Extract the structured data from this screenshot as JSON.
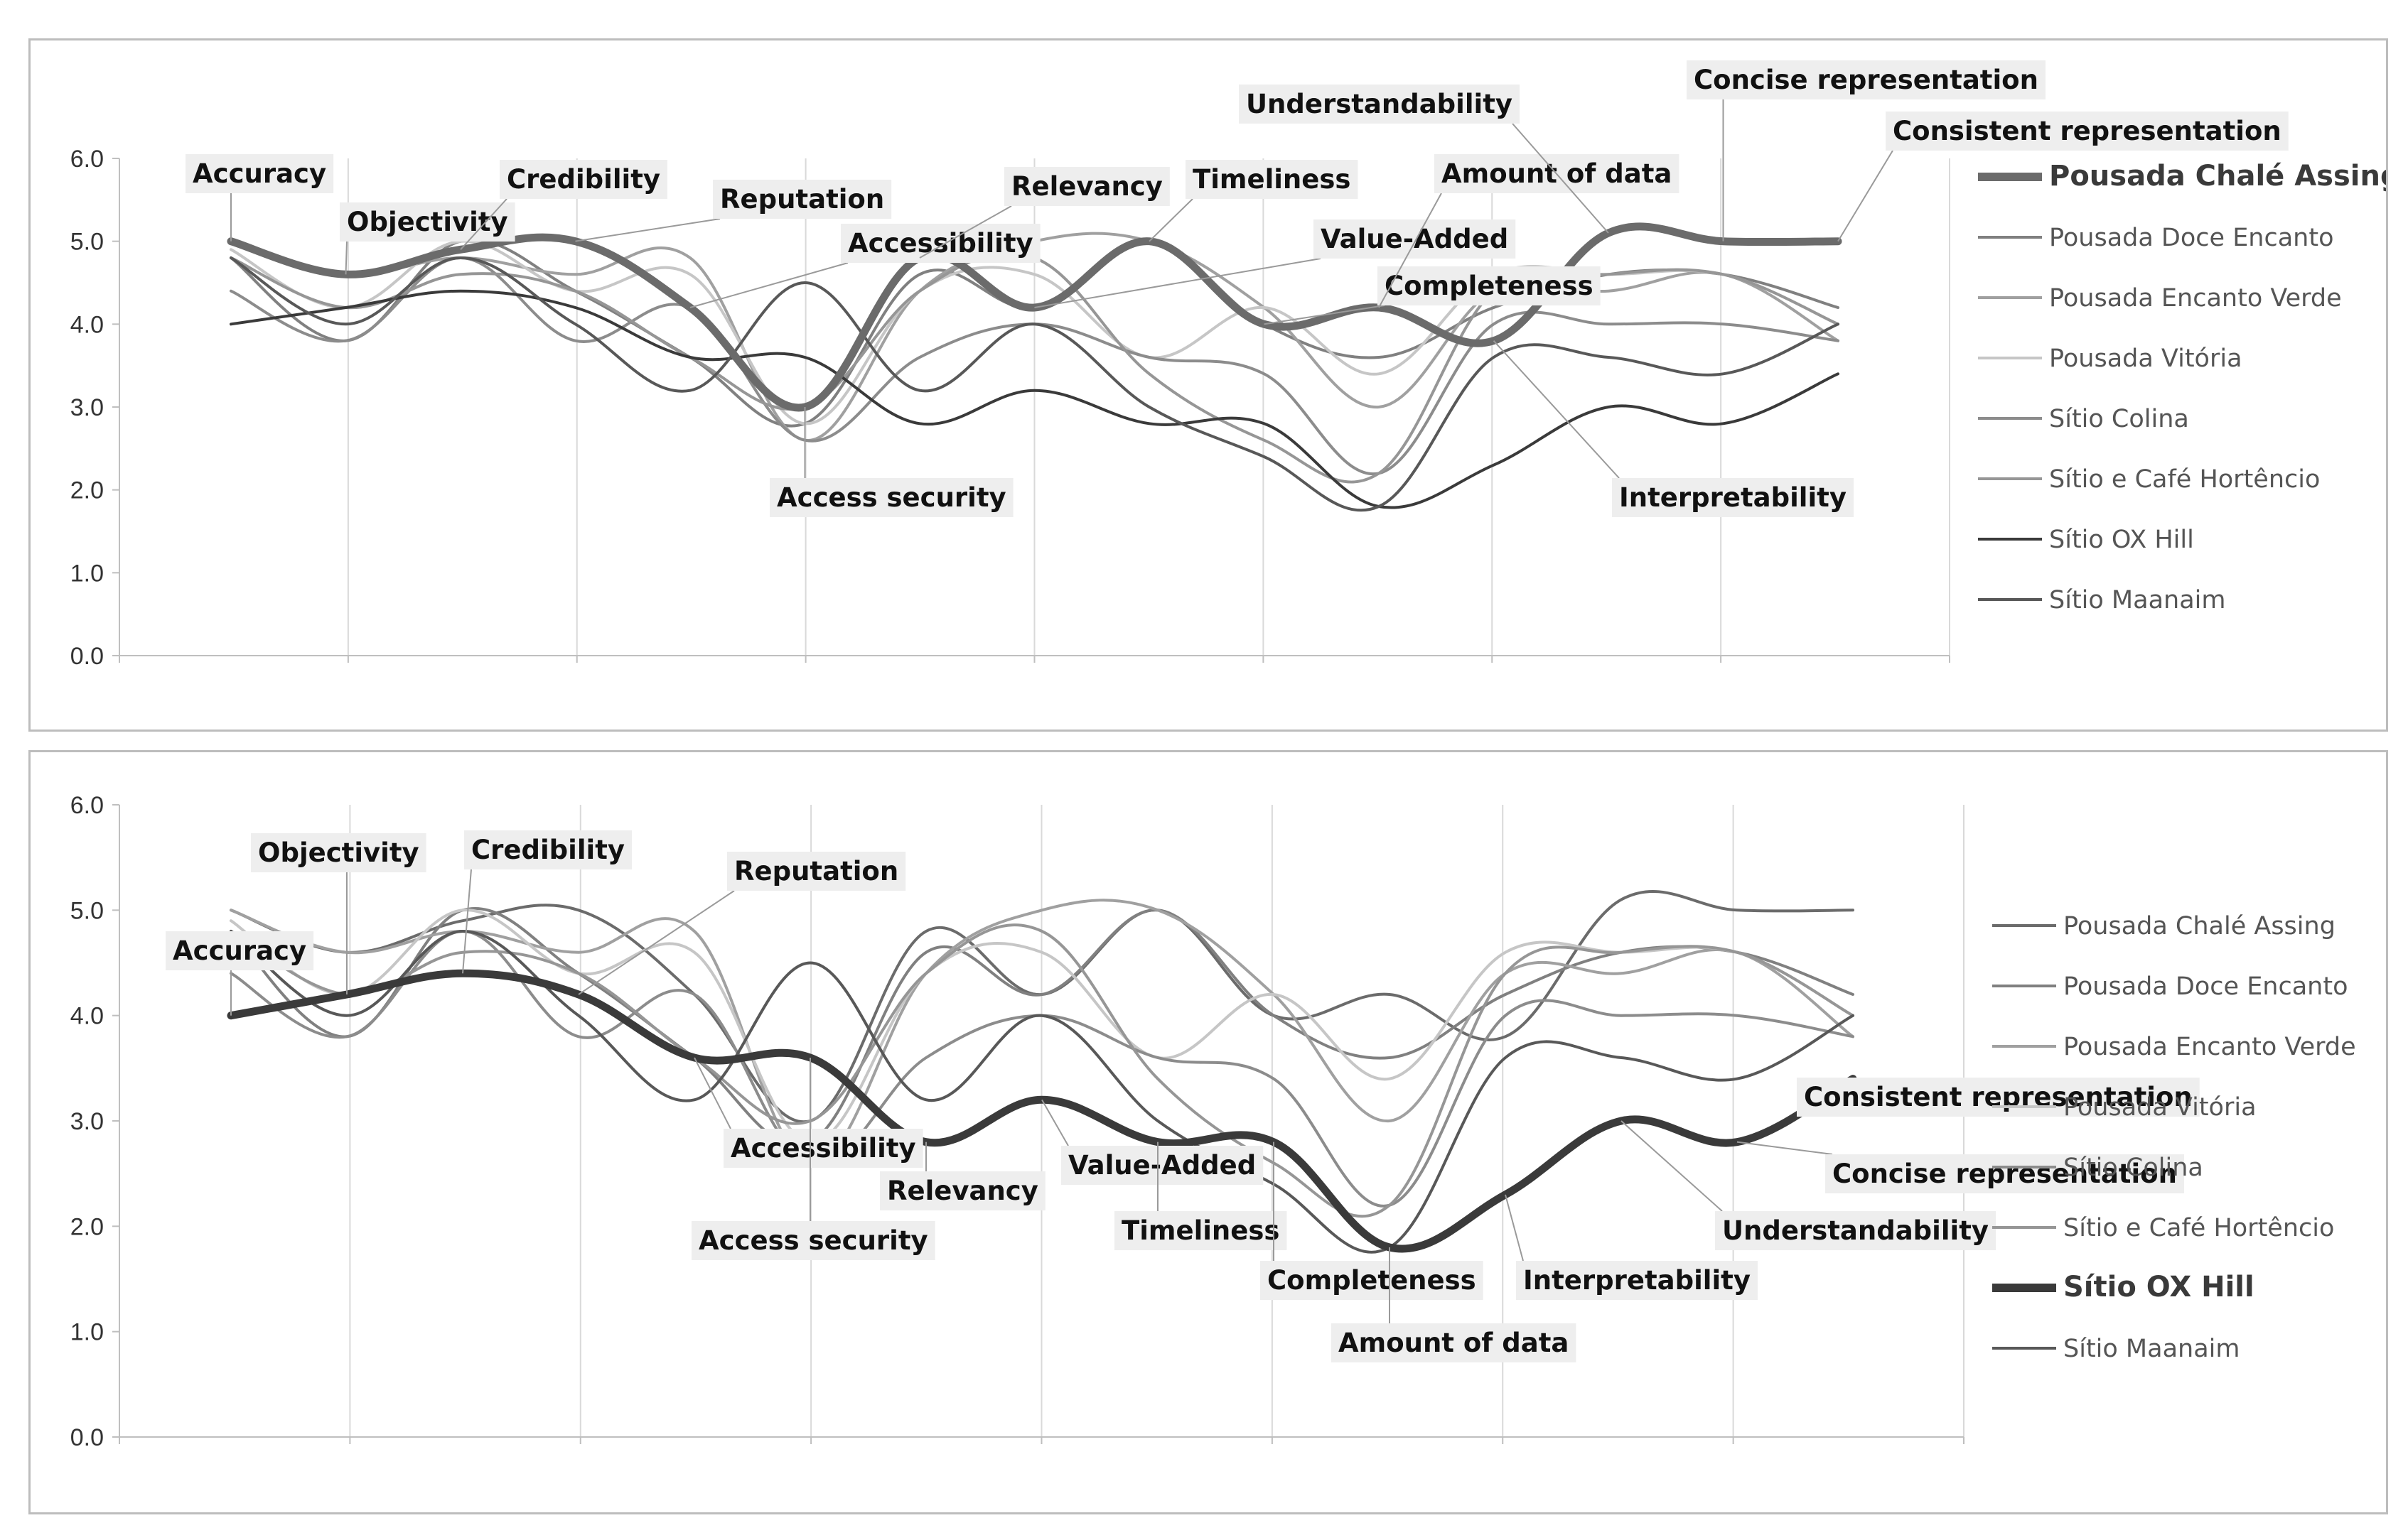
{
  "chart_data": [
    {
      "type": "line",
      "x": [
        "Accuracy",
        "Objectivity",
        "Credibility",
        "Reputation",
        "Accessibility",
        "Access security",
        "Relevancy",
        "Value-Added",
        "Timeliness",
        "Completeness",
        "Amount of data",
        "Interpretability",
        "Understandability",
        "Concise representation",
        "Consistent representation"
      ],
      "ylim": [
        0,
        6
      ],
      "yticks": [
        "0.0",
        "1.0",
        "2.0",
        "3.0",
        "4.0",
        "5.0",
        "6.0"
      ],
      "highlight": "Pousada Chalé Assing",
      "legend_position": "right",
      "series": [
        {
          "name": "Pousada Chalé Assing",
          "color": "#6b6b6b",
          "values": [
            5.0,
            4.6,
            4.9,
            5.0,
            4.2,
            3.0,
            4.8,
            4.2,
            5.0,
            4.0,
            4.2,
            3.8,
            5.1,
            5.0,
            5.0
          ]
        },
        {
          "name": "Pousada Doce Encanto",
          "color": "#808080",
          "values": [
            4.8,
            3.8,
            5.0,
            4.4,
            3.6,
            2.8,
            4.6,
            4.2,
            5.0,
            4.0,
            3.6,
            4.2,
            4.6,
            4.6,
            4.2
          ]
        },
        {
          "name": "Pousada Encanto Verde",
          "color": "#a0a0a0",
          "values": [
            5.0,
            4.6,
            4.8,
            4.6,
            4.8,
            2.6,
            4.4,
            5.0,
            5.0,
            4.2,
            3.0,
            4.4,
            4.4,
            4.6,
            3.8
          ]
        },
        {
          "name": "Pousada Vitória",
          "color": "#c6c6c6",
          "values": [
            4.9,
            4.2,
            5.0,
            4.4,
            4.6,
            2.8,
            4.4,
            4.6,
            3.6,
            4.2,
            3.4,
            4.6,
            4.6,
            4.6,
            4.0
          ]
        },
        {
          "name": "Sítio Colina",
          "color": "#8c8c8c",
          "values": [
            4.4,
            3.8,
            4.8,
            3.8,
            4.2,
            2.6,
            3.6,
            4.0,
            3.6,
            3.4,
            2.2,
            4.0,
            4.0,
            4.0,
            3.8
          ]
        },
        {
          "name": "Sítio e Café Hortêncio",
          "color": "#969696",
          "values": [
            4.8,
            4.2,
            4.6,
            4.4,
            3.6,
            3.0,
            4.4,
            4.8,
            3.4,
            2.6,
            2.2,
            4.4,
            4.6,
            4.6,
            4.0
          ]
        },
        {
          "name": "Sítio OX Hill",
          "color": "#3a3a3a",
          "values": [
            4.0,
            4.2,
            4.4,
            4.2,
            3.6,
            3.6,
            2.8,
            3.2,
            2.8,
            2.8,
            1.8,
            2.3,
            3.0,
            2.8,
            3.4
          ]
        },
        {
          "name": "Sítio Maanaim",
          "color": "#585858",
          "values": [
            4.8,
            4.0,
            4.8,
            4.0,
            3.2,
            4.5,
            3.2,
            4.0,
            3.0,
            2.4,
            1.8,
            3.6,
            3.6,
            3.4,
            4.0
          ]
        }
      ]
    },
    {
      "type": "line",
      "x": [
        "Accuracy",
        "Objectivity",
        "Credibility",
        "Reputation",
        "Accessibility",
        "Access security",
        "Relevancy",
        "Value-Added",
        "Timeliness",
        "Completeness",
        "Amount of data",
        "Interpretability",
        "Understandability",
        "Concise representation",
        "Consistent representation"
      ],
      "ylim": [
        0,
        6
      ],
      "yticks": [
        "0.0",
        "1.0",
        "2.0",
        "3.0",
        "4.0",
        "5.0",
        "6.0"
      ],
      "highlight": "Sítio OX Hill",
      "legend_position": "right",
      "series": [
        {
          "name": "Pousada Chalé Assing",
          "color": "#6b6b6b",
          "values": [
            5.0,
            4.6,
            4.9,
            5.0,
            4.2,
            3.0,
            4.8,
            4.2,
            5.0,
            4.0,
            4.2,
            3.8,
            5.1,
            5.0,
            5.0
          ]
        },
        {
          "name": "Pousada Doce Encanto",
          "color": "#808080",
          "values": [
            4.8,
            3.8,
            5.0,
            4.4,
            3.6,
            2.8,
            4.6,
            4.2,
            5.0,
            4.0,
            3.6,
            4.2,
            4.6,
            4.6,
            4.2
          ]
        },
        {
          "name": "Pousada Encanto Verde",
          "color": "#a0a0a0",
          "values": [
            5.0,
            4.6,
            4.8,
            4.6,
            4.8,
            2.6,
            4.4,
            5.0,
            5.0,
            4.2,
            3.0,
            4.4,
            4.4,
            4.6,
            3.8
          ]
        },
        {
          "name": "Pousada Vitória",
          "color": "#c6c6c6",
          "values": [
            4.9,
            4.2,
            5.0,
            4.4,
            4.6,
            2.8,
            4.4,
            4.6,
            3.6,
            4.2,
            3.4,
            4.6,
            4.6,
            4.6,
            4.0
          ]
        },
        {
          "name": "Sítio Colina",
          "color": "#8c8c8c",
          "values": [
            4.4,
            3.8,
            4.8,
            3.8,
            4.2,
            2.6,
            3.6,
            4.0,
            3.6,
            3.4,
            2.2,
            4.0,
            4.0,
            4.0,
            3.8
          ]
        },
        {
          "name": "Sítio e Café Hortêncio",
          "color": "#969696",
          "values": [
            4.8,
            4.2,
            4.6,
            4.4,
            3.6,
            3.0,
            4.4,
            4.8,
            3.4,
            2.6,
            2.2,
            4.4,
            4.6,
            4.6,
            4.0
          ]
        },
        {
          "name": "Sítio OX Hill",
          "color": "#3a3a3a",
          "values": [
            4.0,
            4.2,
            4.4,
            4.2,
            3.6,
            3.6,
            2.8,
            3.2,
            2.8,
            2.8,
            1.8,
            2.3,
            3.0,
            2.8,
            3.4
          ]
        },
        {
          "name": "Sítio Maanaim",
          "color": "#585858",
          "values": [
            4.8,
            4.0,
            4.8,
            4.0,
            3.2,
            4.5,
            3.2,
            4.0,
            3.0,
            2.4,
            1.8,
            3.6,
            3.6,
            3.4,
            4.0
          ]
        }
      ]
    }
  ]
}
